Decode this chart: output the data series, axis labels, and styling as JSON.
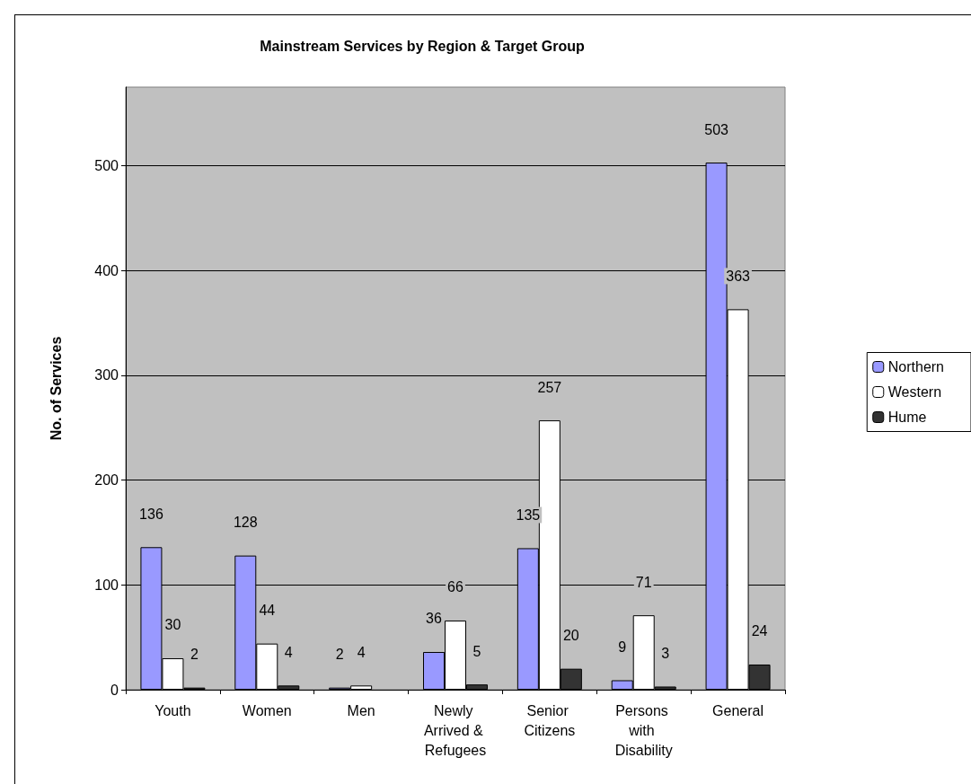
{
  "chart_data": {
    "type": "bar",
    "title": "Mainstream Services by Region & Target Group",
    "ylabel": "No. of Services",
    "categories": [
      "Youth",
      "Women",
      "Men",
      "Newly Arrived & Refugees",
      "Senior Citizens",
      "Persons with Disability",
      "General"
    ],
    "series": [
      {
        "name": "Northern",
        "color": "#9999ff",
        "values": [
          136,
          128,
          2,
          36,
          135,
          9,
          503
        ]
      },
      {
        "name": "Western",
        "color": "#ffffff",
        "values": [
          30,
          44,
          4,
          66,
          257,
          71,
          363
        ]
      },
      {
        "name": "Hume",
        "color": "#333333",
        "values": [
          2,
          4,
          null,
          5,
          20,
          3,
          24
        ]
      }
    ],
    "ylim": [
      0,
      575
    ],
    "yticks": [
      0,
      100,
      200,
      300,
      400,
      500
    ],
    "grid": "y",
    "legend": "right",
    "data_labels": true
  }
}
